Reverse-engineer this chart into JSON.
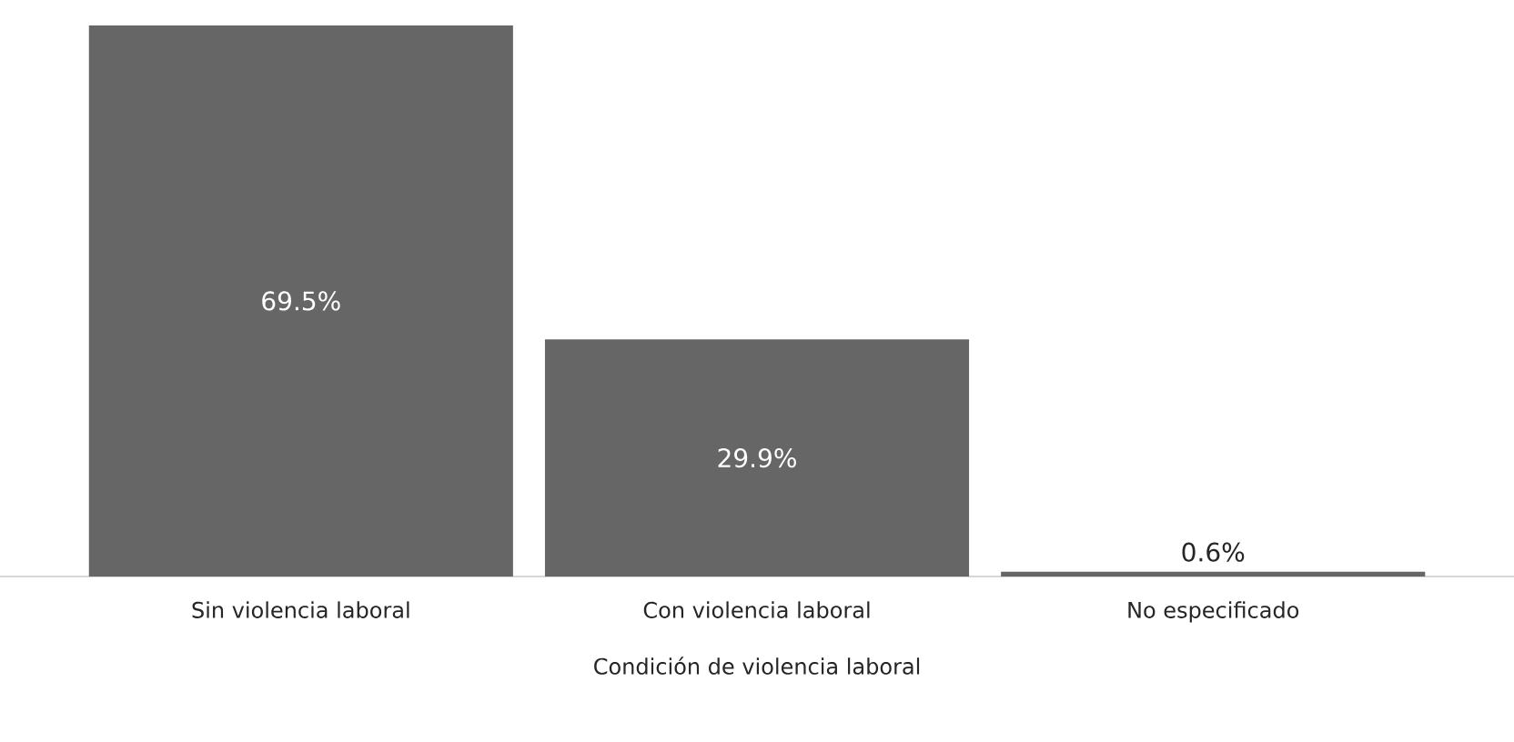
{
  "chart_data": {
    "type": "bar",
    "xlabel": "Condición de violencia laboral",
    "categories": [
      "Sin violencia laboral",
      "Con violencia laboral",
      "No especificado"
    ],
    "values": [
      69.5,
      29.9,
      0.6
    ],
    "value_labels": [
      "69.5%",
      "29.9%",
      "0.6%"
    ],
    "color": "#666666"
  }
}
